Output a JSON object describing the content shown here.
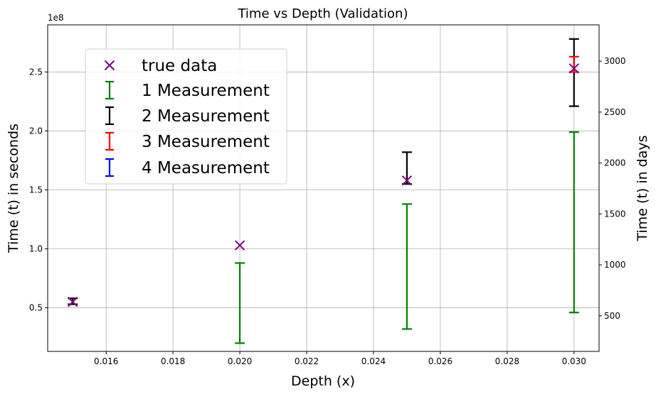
{
  "chart_data": {
    "type": "scatter",
    "title": "Time vs Depth (Validation)",
    "xlabel": "Depth (x)",
    "ylabel": "Time (t) in seconds",
    "ylabel_right": "Time (t) in days",
    "y_offset_label": "1e8",
    "xlim": [
      0.01425,
      0.03075
    ],
    "ylim": [
      0.13,
      2.9
    ],
    "ylim_right_days": [
      150.5,
      3356.5
    ],
    "x_ticks": [
      {
        "value": 0.016,
        "label": "0.016"
      },
      {
        "value": 0.018,
        "label": "0.018"
      },
      {
        "value": 0.02,
        "label": "0.020"
      },
      {
        "value": 0.022,
        "label": "0.022"
      },
      {
        "value": 0.024,
        "label": "0.024"
      },
      {
        "value": 0.026,
        "label": "0.026"
      },
      {
        "value": 0.028,
        "label": "0.028"
      },
      {
        "value": 0.03,
        "label": "0.030"
      }
    ],
    "y_ticks": [
      {
        "value": 0.5,
        "label": "0.5"
      },
      {
        "value": 1.0,
        "label": "1.0"
      },
      {
        "value": 1.5,
        "label": "1.5"
      },
      {
        "value": 2.0,
        "label": "2.0"
      },
      {
        "value": 2.5,
        "label": "2.5"
      }
    ],
    "y_right_ticks": [
      {
        "value": 500,
        "label": "500"
      },
      {
        "value": 1000,
        "label": "1000"
      },
      {
        "value": 1500,
        "label": "1500"
      },
      {
        "value": 2000,
        "label": "2000"
      },
      {
        "value": 2500,
        "label": "2500"
      },
      {
        "value": 3000,
        "label": "3000"
      }
    ],
    "grid": true,
    "legend_position": "upper-left",
    "true_data": {
      "name": "true data",
      "color": "#800080",
      "marker": "x",
      "x": [
        0.015,
        0.02,
        0.025,
        0.03
      ],
      "y": [
        0.55,
        1.03,
        1.58,
        2.53
      ]
    },
    "error_series": [
      {
        "name": "1 Measurement",
        "color": "#008000",
        "points": [
          {
            "x": 0.02,
            "low": 0.2,
            "high": 0.88
          },
          {
            "x": 0.025,
            "low": 0.32,
            "high": 1.38
          },
          {
            "x": 0.03,
            "low": 0.46,
            "high": 1.99
          }
        ]
      },
      {
        "name": "2 Measurement",
        "color": "#000000",
        "points": [
          {
            "x": 0.015,
            "low": 0.53,
            "high": 0.58
          },
          {
            "x": 0.025,
            "low": 1.55,
            "high": 1.82
          },
          {
            "x": 0.03,
            "low": 2.21,
            "high": 2.78
          }
        ]
      },
      {
        "name": "3 Measurement",
        "color": "#ff0000",
        "points": [
          {
            "x": 0.03,
            "low": 2.5,
            "high": 2.63
          }
        ]
      },
      {
        "name": "4 Measurement",
        "color": "#0000ff",
        "points": []
      }
    ]
  }
}
